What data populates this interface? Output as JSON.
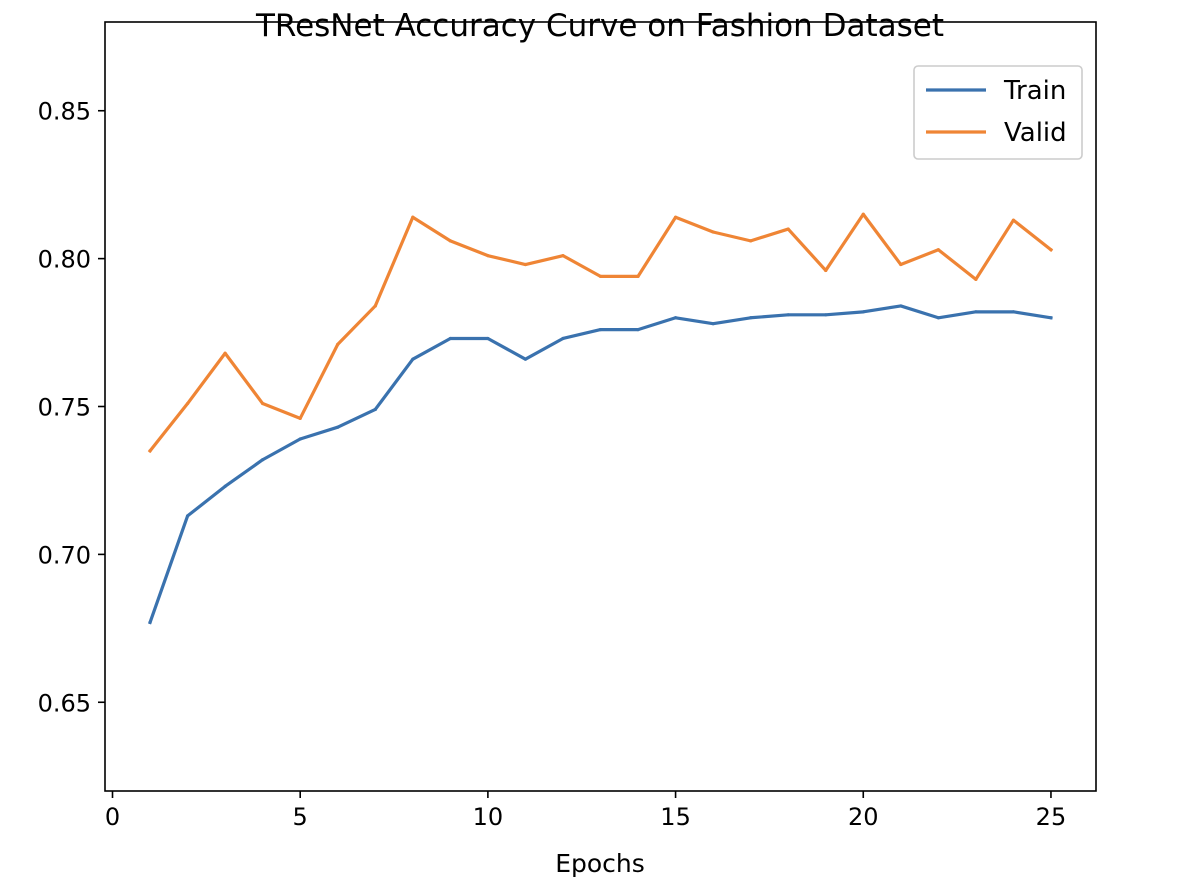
{
  "chart_data": {
    "type": "line",
    "title": "TResNet Accuracy Curve on Fashion Dataset",
    "xlabel": "Epochs",
    "ylabel": "",
    "xlim": [
      -0.2,
      26.2
    ],
    "ylim": [
      0.62,
      0.88
    ],
    "xticks": [
      0,
      5,
      10,
      15,
      20,
      25
    ],
    "xtick_labels": [
      "0",
      "5",
      "10",
      "15",
      "20",
      "25"
    ],
    "yticks": [
      0.65,
      0.7,
      0.75,
      0.8,
      0.85
    ],
    "ytick_labels": [
      "0.65",
      "0.70",
      "0.75",
      "0.80",
      "0.85"
    ],
    "grid": false,
    "legend_position": "top-right",
    "x": [
      1,
      2,
      3,
      4,
      5,
      6,
      7,
      8,
      9,
      10,
      11,
      12,
      13,
      14,
      15,
      16,
      17,
      18,
      19,
      20,
      21,
      22,
      23,
      24,
      25
    ],
    "series": [
      {
        "name": "Train",
        "color": "#3a72ae",
        "values": [
          0.677,
          0.713,
          0.723,
          0.732,
          0.739,
          0.743,
          0.749,
          0.766,
          0.773,
          0.773,
          0.766,
          0.773,
          0.776,
          0.776,
          0.78,
          0.778,
          0.78,
          0.781,
          0.781,
          0.782,
          0.784,
          0.78,
          0.782,
          0.782,
          0.78
        ]
      },
      {
        "name": "Valid",
        "color": "#ef8535",
        "values": [
          0.735,
          0.751,
          0.768,
          0.751,
          0.746,
          0.771,
          0.784,
          0.814,
          0.806,
          0.801,
          0.798,
          0.801,
          0.794,
          0.794,
          0.814,
          0.809,
          0.806,
          0.81,
          0.796,
          0.815,
          0.798,
          0.803,
          0.793,
          0.813,
          0.803
        ]
      }
    ]
  }
}
